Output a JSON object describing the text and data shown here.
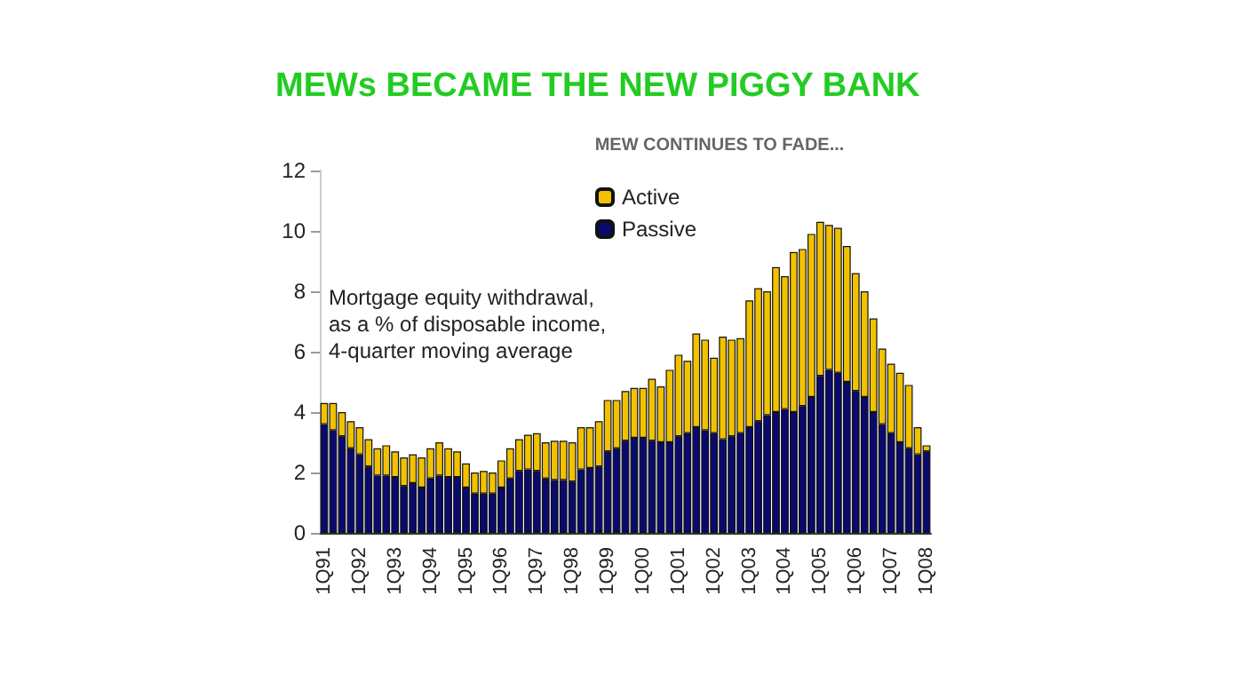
{
  "chart_data": {
    "type": "bar",
    "title": "MEWs BECAME THE NEW PIGGY BANK",
    "subtitle": "MEW CONTINUES TO FADE...",
    "annotations": [
      "Mortgage equity withdrawal, as a % of disposable income, 4-quarter moving average"
    ],
    "categories": [
      "1Q91",
      null,
      null,
      null,
      "1Q92",
      null,
      null,
      null,
      "1Q93",
      null,
      null,
      null,
      "1Q94",
      null,
      null,
      null,
      "1Q95",
      null,
      null,
      null,
      "1Q96",
      null,
      null,
      null,
      "1Q97",
      null,
      null,
      null,
      "1Q98",
      null,
      null,
      null,
      "1Q99",
      null,
      null,
      null,
      "1Q00",
      null,
      null,
      null,
      "1Q01",
      null,
      null,
      null,
      "1Q02",
      null,
      null,
      null,
      "1Q03",
      null,
      null,
      null,
      "1Q04",
      null,
      null,
      null,
      "1Q05",
      null,
      null,
      null,
      "1Q06",
      null,
      null,
      null,
      "1Q07",
      null,
      null,
      null,
      "1Q08"
    ],
    "stacked": true,
    "series": [
      {
        "name": "Passive",
        "color": "#0a0a6e",
        "values": [
          3.6,
          3.4,
          3.2,
          2.8,
          2.6,
          2.2,
          1.9,
          1.9,
          1.85,
          1.55,
          1.65,
          1.5,
          1.8,
          1.9,
          1.85,
          1.85,
          1.5,
          1.3,
          1.3,
          1.3,
          1.5,
          1.8,
          2.05,
          2.1,
          2.05,
          1.8,
          1.75,
          1.75,
          1.7,
          2.1,
          2.15,
          2.2,
          2.7,
          2.8,
          3.05,
          3.15,
          3.15,
          3.05,
          3.0,
          3.0,
          3.2,
          3.3,
          3.5,
          3.4,
          3.3,
          3.1,
          3.2,
          3.3,
          3.5,
          3.7,
          3.9,
          4.0,
          4.1,
          4.0,
          4.2,
          4.5,
          5.2,
          5.4,
          5.3,
          5.0,
          4.7,
          4.5,
          4.0,
          3.6,
          3.3,
          3.0,
          2.8,
          2.6,
          2.7
        ]
      },
      {
        "name": "Active",
        "color": "#f2c200",
        "values": [
          0.7,
          0.9,
          0.8,
          0.9,
          0.9,
          0.9,
          0.9,
          1.0,
          0.85,
          0.95,
          0.95,
          1.0,
          1.0,
          1.1,
          0.95,
          0.85,
          0.8,
          0.7,
          0.75,
          0.7,
          0.9,
          1.0,
          1.05,
          1.15,
          1.25,
          1.2,
          1.3,
          1.3,
          1.3,
          1.4,
          1.35,
          1.5,
          1.7,
          1.6,
          1.65,
          1.65,
          1.65,
          2.05,
          1.85,
          2.4,
          2.7,
          2.4,
          3.1,
          3.0,
          2.5,
          3.4,
          3.2,
          3.15,
          4.2,
          4.4,
          4.1,
          4.8,
          4.4,
          5.3,
          5.2,
          5.4,
          5.1,
          4.8,
          4.8,
          4.5,
          3.9,
          3.5,
          3.1,
          2.5,
          2.3,
          2.3,
          2.1,
          0.9,
          0.2
        ]
      }
    ],
    "ylim": [
      0,
      12
    ],
    "yticks": [
      0,
      2,
      4,
      6,
      8,
      10,
      12
    ],
    "grid": false,
    "legend": "top"
  }
}
